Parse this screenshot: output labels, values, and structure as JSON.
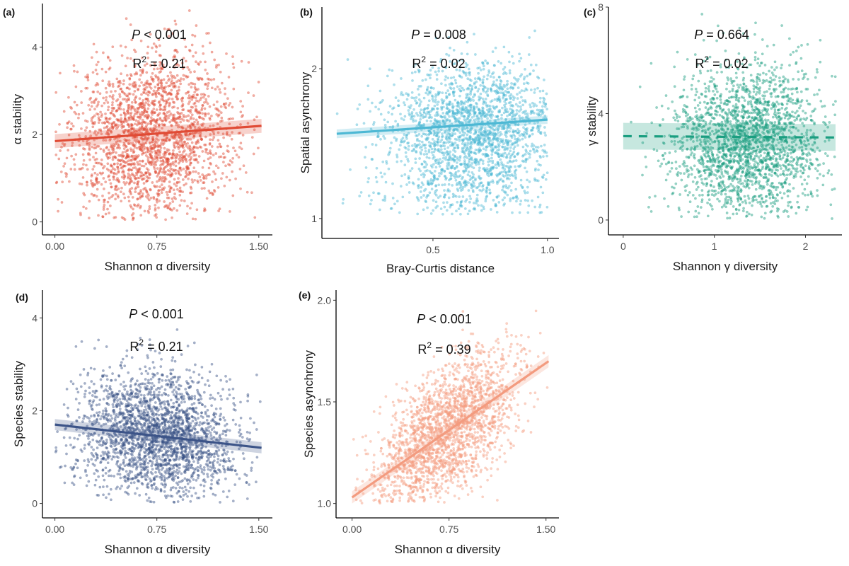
{
  "figure": {
    "panels_count": 5
  },
  "chart_data": [
    {
      "id": "a",
      "type": "scatter",
      "panel_label": "(a)",
      "xlabel": "Shannon α diversity",
      "ylabel": "α stability",
      "x_ticks": [
        0.0,
        0.75,
        1.5
      ],
      "x_tick_labels": [
        "0.00",
        "0.75",
        "1.50"
      ],
      "y_ticks": [
        0,
        2,
        4
      ],
      "y_tick_labels": [
        "0",
        "2",
        "4"
      ],
      "xlim": [
        -0.05,
        1.6
      ],
      "ylim": [
        -0.2,
        5.0
      ],
      "color": "#E04B35",
      "fit": {
        "x0": 0.0,
        "y0": 1.85,
        "x1": 1.52,
        "y1": 2.2,
        "dashed": false,
        "ci": 0.08
      },
      "stats": {
        "p_symbol": "P",
        "p_op": "<",
        "p_value": "0.001",
        "r2_label": "R",
        "r2_sup": "2",
        "r2_op": "=",
        "r2_value": "0.21"
      },
      "points_summary": {
        "n_approx": 2200,
        "x_mean": 0.72,
        "x_sd": 0.3,
        "y_mean": 1.95,
        "y_sd": 0.95,
        "x_range": [
          0.0,
          1.52
        ],
        "y_range": [
          0.05,
          4.95
        ]
      }
    },
    {
      "id": "b",
      "type": "scatter",
      "panel_label": "(b)",
      "xlabel": "Bray-Curtis distance",
      "ylabel": "Spatial asynchrony",
      "x_ticks": [
        0.5,
        1.0
      ],
      "x_tick_labels": [
        "0.5",
        "1.0"
      ],
      "y_ticks": [
        1,
        2
      ],
      "y_tick_labels": [
        "1",
        "2"
      ],
      "xlim": [
        0.04,
        1.05
      ],
      "ylim": [
        0.93,
        2.66
      ],
      "y_scale": "log",
      "color": "#4DB8D4",
      "fit": {
        "x0": 0.08,
        "y0": 1.48,
        "x1": 1.0,
        "y1": 1.58,
        "dashed": false,
        "ci": 0.03
      },
      "stats": {
        "p_symbol": "P",
        "p_op": "=",
        "p_value": "0.008",
        "r2_label": "R",
        "r2_sup": "2",
        "r2_op": "=",
        "r2_value": "0.02"
      },
      "points_summary": {
        "n_approx": 2200,
        "x_mean": 0.68,
        "x_sd": 0.2,
        "y_mean": 1.45,
        "y_sd": 0.28,
        "x_range": [
          0.08,
          1.0
        ],
        "y_range": [
          1.02,
          2.6
        ]
      }
    },
    {
      "id": "c",
      "type": "scatter",
      "panel_label": "(c)",
      "xlabel": "Shannon γ diversity",
      "ylabel": "γ stability",
      "x_ticks": [
        0,
        1,
        2
      ],
      "x_tick_labels": [
        "0",
        "1",
        "2"
      ],
      "y_ticks": [
        0,
        4,
        8
      ],
      "y_tick_labels": [
        "0",
        "4",
        "8"
      ],
      "xlim": [
        -0.1,
        2.4
      ],
      "ylim": [
        -0.4,
        8.0
      ],
      "color": "#1A9E80",
      "fit": {
        "x0": 0.0,
        "y0": 3.15,
        "x1": 2.33,
        "y1": 3.1,
        "dashed": true,
        "ci": 0.25
      },
      "stats": {
        "p_symbol": "P",
        "p_op": "=",
        "p_value": "0.664",
        "r2_label": "R",
        "r2_sup": "2",
        "r2_op": "=",
        "r2_value": "0.02"
      },
      "points_summary": {
        "n_approx": 2200,
        "x_mean": 1.35,
        "x_sd": 0.42,
        "y_mean": 2.9,
        "y_sd": 1.5,
        "x_range": [
          0.0,
          2.33
        ],
        "y_range": [
          0.05,
          7.9
        ]
      }
    },
    {
      "id": "d",
      "type": "scatter",
      "panel_label": "(d)",
      "xlabel": "Shannon α diversity",
      "ylabel": "Species stability",
      "x_ticks": [
        0.0,
        0.75,
        1.5
      ],
      "x_tick_labels": [
        "0.00",
        "0.75",
        "1.50"
      ],
      "y_ticks": [
        0,
        2,
        4
      ],
      "y_tick_labels": [
        "0",
        "2",
        "4"
      ],
      "xlim": [
        -0.05,
        1.6
      ],
      "ylim": [
        -0.22,
        4.6
      ],
      "color": "#3C5488",
      "fit": {
        "x0": 0.0,
        "y0": 1.7,
        "x1": 1.52,
        "y1": 1.2,
        "dashed": false,
        "ci": 0.06
      },
      "stats": {
        "p_symbol": "P",
        "p_op": "<",
        "p_value": "0.001",
        "r2_label": "R",
        "r2_sup": "2",
        "r2_op": "=",
        "r2_value": "0.21"
      },
      "points_summary": {
        "n_approx": 2400,
        "x_mean": 0.75,
        "x_sd": 0.3,
        "y_mean": 1.45,
        "y_sd": 0.7,
        "x_range": [
          0.0,
          1.52
        ],
        "y_range": [
          0.02,
          4.5
        ]
      }
    },
    {
      "id": "e",
      "type": "scatter",
      "panel_label": "(e)",
      "xlabel": "Shannon α diversity",
      "ylabel": "Species asynchrony",
      "x_ticks": [
        0.0,
        0.75,
        1.5
      ],
      "x_tick_labels": [
        "0.00",
        "0.75",
        "1.50"
      ],
      "y_ticks": [
        1.0,
        1.5,
        2.0
      ],
      "y_tick_labels": [
        "1.0",
        "1.5",
        "2.0"
      ],
      "xlim": [
        -0.08,
        1.6
      ],
      "ylim": [
        0.95,
        2.05
      ],
      "color": "#F39B7F",
      "fit": {
        "x0": 0.0,
        "y0": 1.03,
        "x1": 1.52,
        "y1": 1.7,
        "dashed": false,
        "ci": 0.015
      },
      "stats": {
        "p_symbol": "P",
        "p_op": "<",
        "p_value": "0.001",
        "r2_label": "R",
        "r2_sup": "2",
        "r2_op": "=",
        "r2_value": "0.39"
      },
      "points_summary": {
        "n_approx": 2200,
        "x_mean": 0.72,
        "x_sd": 0.28,
        "y_mean": 1.33,
        "y_sd": 0.16,
        "x_range": [
          0.0,
          1.52
        ],
        "y_range": [
          1.0,
          1.97
        ]
      }
    }
  ]
}
